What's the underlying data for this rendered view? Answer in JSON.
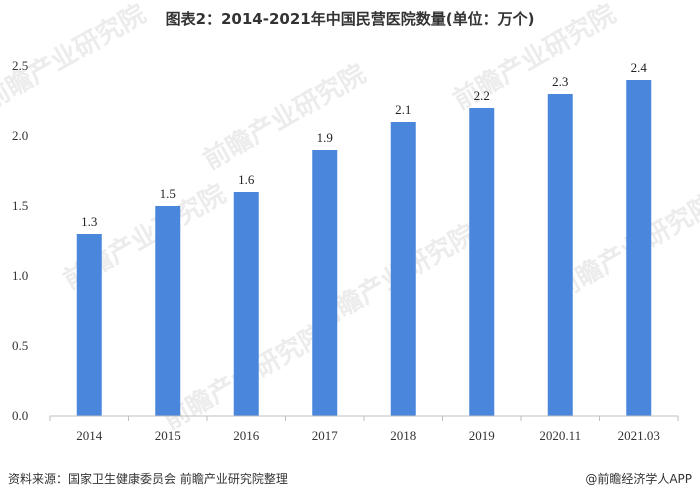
{
  "title": "图表2：2014-2021年中国民营医院数量(单位：万个)",
  "source": "资料来源：国家卫生健康委员会 前瞻产业研究院整理",
  "brand": "@前瞻经济学人APP",
  "watermark": "前瞻产业研究院",
  "colors": {
    "bar": "#4a86dc",
    "axis": "#bfbfbf",
    "text": "#333333"
  },
  "chart_data": {
    "type": "bar",
    "title": "图表2：2014-2021年中国民营医院数量(单位：万个)",
    "categories": [
      "2014",
      "2015",
      "2016",
      "2017",
      "2018",
      "2019",
      "2020.11",
      "2021.03"
    ],
    "values": [
      1.3,
      1.5,
      1.6,
      1.9,
      2.1,
      2.2,
      2.3,
      2.4
    ],
    "data_labels": [
      "1.3",
      "1.5",
      "1.6",
      "1.9",
      "2.1",
      "2.2",
      "2.3",
      "2.4"
    ],
    "yticks": [
      "0.0",
      "0.5",
      "1.0",
      "1.5",
      "2.0",
      "2.5"
    ],
    "xlabel": "",
    "ylabel": "",
    "ylim": [
      0,
      2.5
    ],
    "grid": false,
    "legend": "none"
  }
}
